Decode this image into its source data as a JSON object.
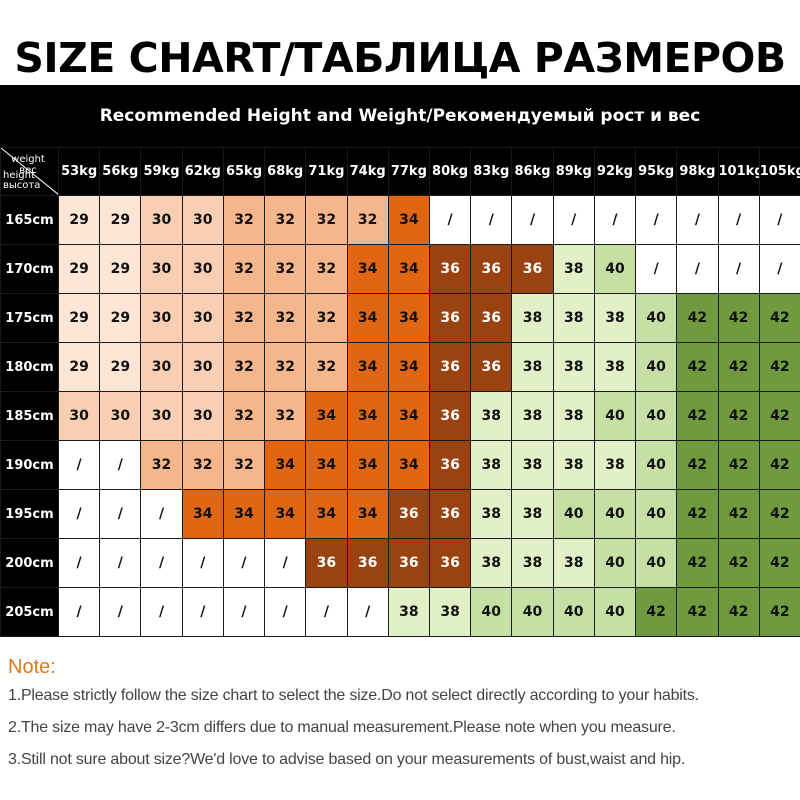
{
  "title": "SIZE CHART/ТАБЛИЦА РАЗМЕРОВ",
  "chart_data": {
    "type": "table",
    "subtitle": "Recommended Height and Weight/Рекомендуемый рост и вес",
    "corner": {
      "weight": "weight вес",
      "height_en": "height",
      "height_ru": "высота"
    },
    "weights": [
      "53kg",
      "56kg",
      "59kg",
      "62kg",
      "65kg",
      "68kg",
      "71kg",
      "74kg",
      "77kg",
      "80kg",
      "83kg",
      "86kg",
      "89kg",
      "92kg",
      "95kg",
      "98kg",
      "101kg",
      "105kg"
    ],
    "heights": [
      "165cm",
      "170cm",
      "175cm",
      "180cm",
      "185cm",
      "190cm",
      "195cm",
      "200cm",
      "205cm"
    ],
    "sizes": [
      [
        "29",
        "29",
        "30",
        "30",
        "32",
        "32",
        "32",
        "32",
        "34",
        "/",
        "/",
        "/",
        "/",
        "/",
        "/",
        "/",
        "/",
        "/"
      ],
      [
        "29",
        "29",
        "30",
        "30",
        "32",
        "32",
        "32",
        "34",
        "34",
        "36",
        "36",
        "36",
        "38",
        "40",
        "/",
        "/",
        "/",
        "/"
      ],
      [
        "29",
        "29",
        "30",
        "30",
        "32",
        "32",
        "32",
        "34",
        "34",
        "36",
        "36",
        "38",
        "38",
        "38",
        "40",
        "42",
        "42",
        "42"
      ],
      [
        "29",
        "29",
        "30",
        "30",
        "32",
        "32",
        "32",
        "34",
        "34",
        "36",
        "36",
        "38",
        "38",
        "38",
        "40",
        "42",
        "42",
        "42"
      ],
      [
        "30",
        "30",
        "30",
        "30",
        "32",
        "32",
        "34",
        "34",
        "34",
        "36",
        "38",
        "38",
        "38",
        "40",
        "40",
        "42",
        "42",
        "42"
      ],
      [
        "/",
        "/",
        "32",
        "32",
        "32",
        "34",
        "34",
        "34",
        "34",
        "36",
        "38",
        "38",
        "38",
        "38",
        "40",
        "42",
        "42",
        "42"
      ],
      [
        "/",
        "/",
        "/",
        "34",
        "34",
        "34",
        "34",
        "34",
        "36",
        "36",
        "38",
        "38",
        "40",
        "40",
        "40",
        "42",
        "42",
        "42"
      ],
      [
        "/",
        "/",
        "/",
        "/",
        "/",
        "/",
        "36",
        "36",
        "36",
        "36",
        "38",
        "38",
        "38",
        "40",
        "40",
        "42",
        "42",
        "42"
      ],
      [
        "/",
        "/",
        "/",
        "/",
        "/",
        "/",
        "/",
        "/",
        "38",
        "38",
        "40",
        "40",
        "40",
        "40",
        "42",
        "42",
        "42",
        "42"
      ]
    ],
    "size_colors": {
      "/": "#ffffff",
      "29": "#fde6d6",
      "30": "#f9cfb3",
      "32": "#f6b68b",
      "34": "#e06614",
      "36": "#9a4310",
      "38": "#e2f0c8",
      "40": "#c5dfa4",
      "42": "#6f9a3d"
    }
  },
  "notes": {
    "title": "Note:",
    "lines": [
      "1.Please strictly follow the size chart to select the size.Do not select directly according to your habits.",
      "2.The size may have 2-3cm differs due to manual measurement.Please note when you measure.",
      "3.Still not sure about size?We'd love to advise based on your measurements of bust,waist and hip."
    ]
  }
}
